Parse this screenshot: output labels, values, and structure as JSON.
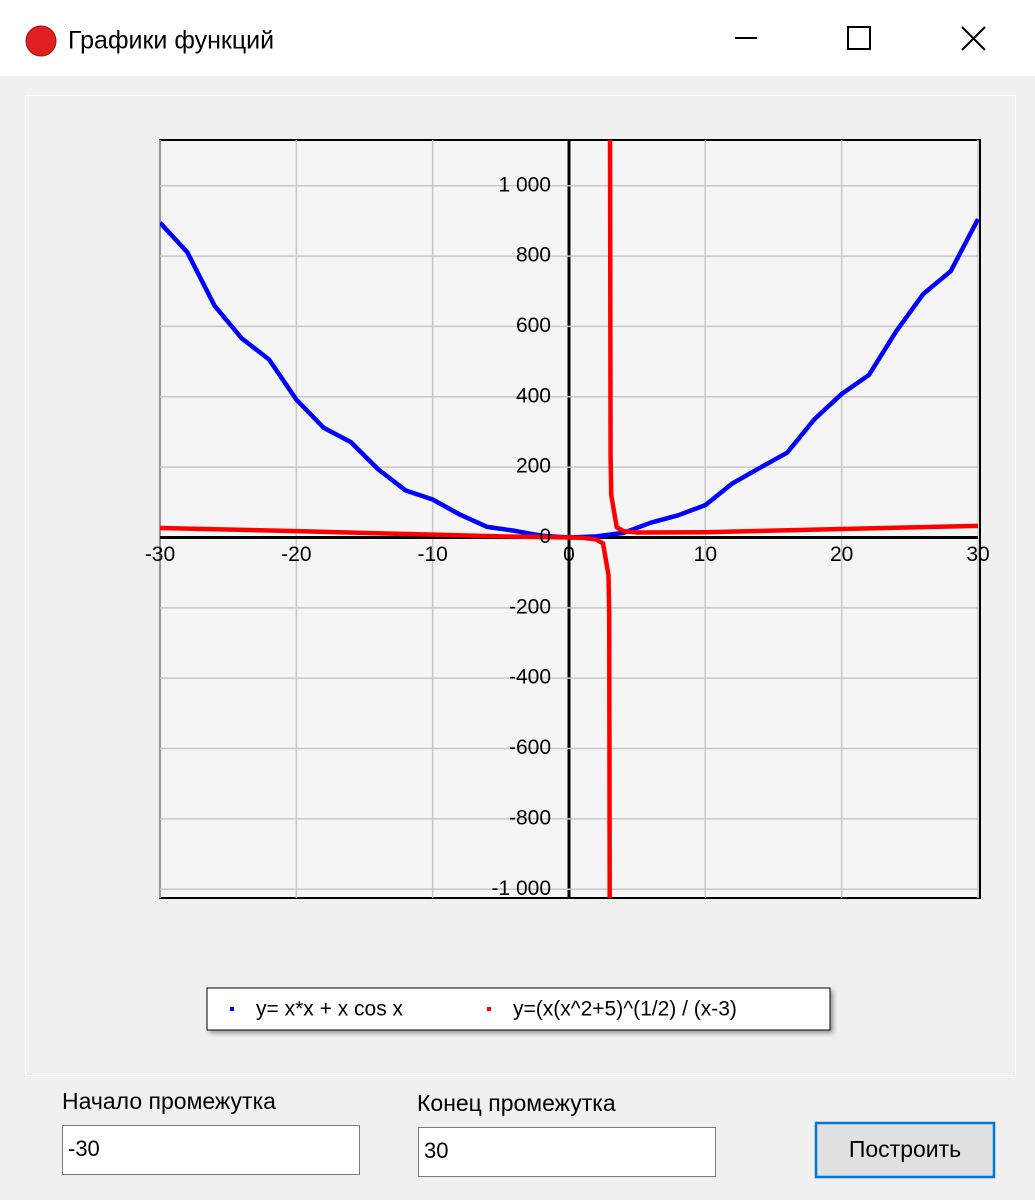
{
  "window": {
    "title": "Графики функций"
  },
  "chart_data": {
    "type": "line",
    "xlim": [
      -30,
      30
    ],
    "ylim": [
      -1025,
      1130
    ],
    "xticks": [
      -30,
      -20,
      -10,
      0,
      10,
      20,
      30
    ],
    "yticks": [
      {
        "value": -1000,
        "label": "-1 000"
      },
      -800,
      -600,
      -400,
      -200,
      0,
      200,
      400,
      600,
      800,
      {
        "value": 1000,
        "label": "1 000"
      }
    ],
    "grid": true,
    "legend": "bottom",
    "series": [
      {
        "name": "y= x*x + x cos x",
        "color": "#0000ff",
        "x": [
          -30,
          -28,
          -26,
          -24,
          -22,
          -20,
          -18,
          -16,
          -14,
          -12,
          -10,
          -8,
          -6,
          -4,
          -2,
          0,
          2,
          4,
          6,
          8,
          10,
          12,
          14,
          16,
          18,
          20,
          22,
          24,
          26,
          28,
          30
        ],
        "values": [
          895,
          811,
          659,
          566,
          506,
          392,
          312,
          271,
          194,
          134,
          108,
          65,
          30,
          19,
          5,
          0,
          3,
          13,
          42,
          63,
          92,
          154,
          198,
          241,
          336,
          408,
          462,
          586,
          693,
          757,
          905
        ]
      },
      {
        "name": "y=(x(x^2+5)^(1/2) / (x-3)",
        "color": "#ff0000",
        "x": [
          -30,
          -20,
          -10,
          -5,
          0,
          1,
          2,
          2.5,
          2.9,
          2.95,
          2.99,
          3,
          3.01,
          3.05,
          3.1,
          3.5,
          4,
          5,
          10,
          20,
          30
        ],
        "values": [
          27,
          18,
          8,
          3,
          0,
          -1,
          -6,
          -17,
          -108,
          -221,
          -1133,
          null,
          1144,
          234,
          120,
          29,
          18,
          14,
          15,
          24,
          33
        ]
      }
    ]
  },
  "form": {
    "start_label": "Начало промежутка",
    "start_value": "-30",
    "end_label": "Конец промежутка",
    "end_value": "30",
    "button": "Построить"
  }
}
